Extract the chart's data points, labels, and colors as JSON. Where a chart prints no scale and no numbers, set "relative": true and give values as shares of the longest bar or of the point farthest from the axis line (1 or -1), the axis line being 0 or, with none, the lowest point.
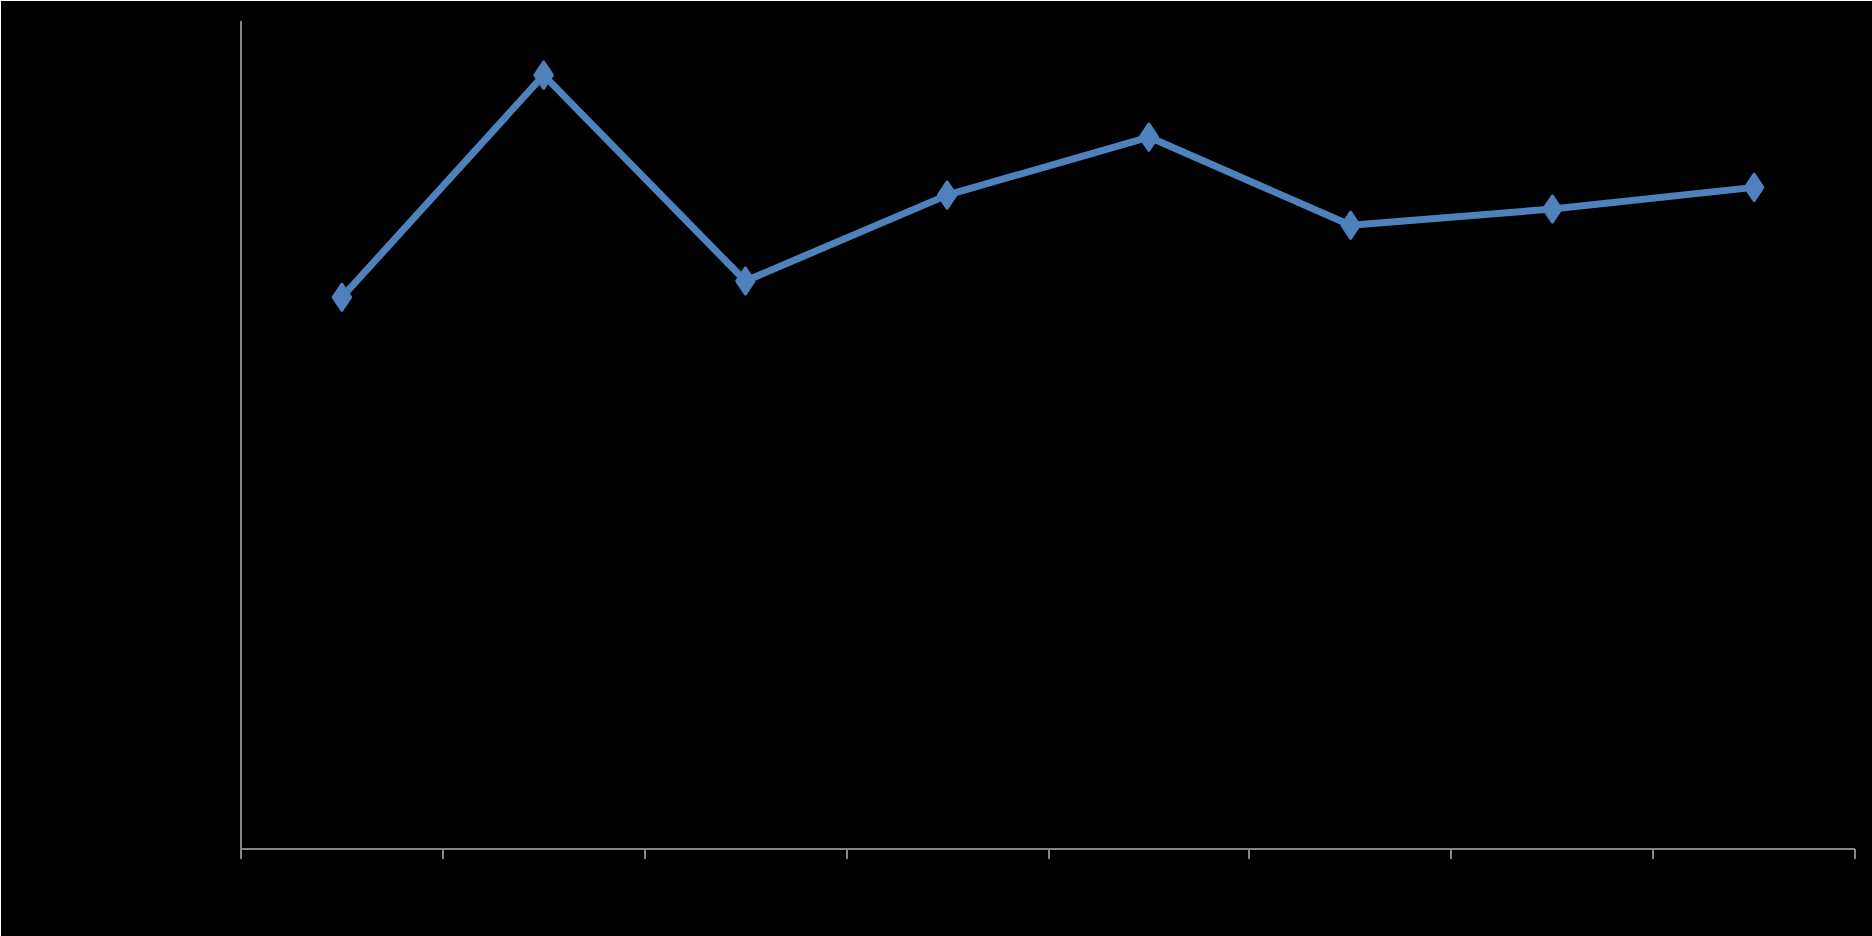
{
  "chart_data": {
    "type": "line",
    "relative": true,
    "marker": "diamond",
    "line_style": "solid",
    "categories": [
      null,
      null,
      null,
      null,
      null,
      null,
      null,
      null
    ],
    "series": [
      {
        "color": "#4f81bd",
        "values": [
          0.713,
          1,
          0.734,
          0.845,
          0.92,
          0.806,
          0.827,
          0.855
        ]
      }
    ]
  }
}
